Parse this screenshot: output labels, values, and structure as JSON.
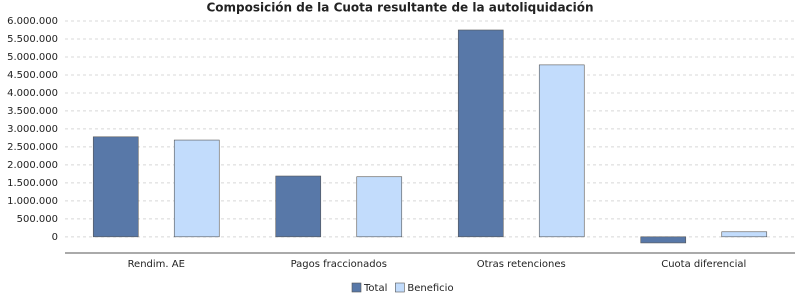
{
  "chart_data": {
    "type": "bar",
    "title": "Composición de la Cuota resultante de la autoliquidación",
    "categories": [
      "Rendim. AE",
      "Pagos fraccionados",
      "Otras retenciones",
      "Cuota diferencial"
    ],
    "series": [
      {
        "name": "Total",
        "color": "#5878a8",
        "values": [
          2780000,
          1690000,
          5750000,
          -170000
        ]
      },
      {
        "name": "Beneficio",
        "color": "#c2dcfc",
        "values": [
          2690000,
          1670000,
          4780000,
          140000
        ]
      }
    ],
    "ylim": [
      -450000,
      6000000
    ],
    "yticks": [
      0,
      {
        "value": 500000,
        "label": "500.000"
      },
      {
        "value": 1000000,
        "label": "1.000.000"
      },
      {
        "value": 1500000,
        "label": "1.500.000"
      },
      {
        "value": 2000000,
        "label": "2.000.000"
      },
      {
        "value": 2500000,
        "label": "2.500.000"
      },
      {
        "value": 3000000,
        "label": "3.000.000"
      },
      {
        "value": 3500000,
        "label": "3.500.000"
      },
      {
        "value": 4000000,
        "label": "4.000.000"
      },
      {
        "value": 4500000,
        "label": "4.500.000"
      },
      {
        "value": 5000000,
        "label": "5.000.000"
      },
      {
        "value": 5500000,
        "label": "5.500.000"
      },
      {
        "value": 6000000,
        "label": "6.000.000"
      }
    ],
    "grid": true,
    "legend": "bottom"
  }
}
